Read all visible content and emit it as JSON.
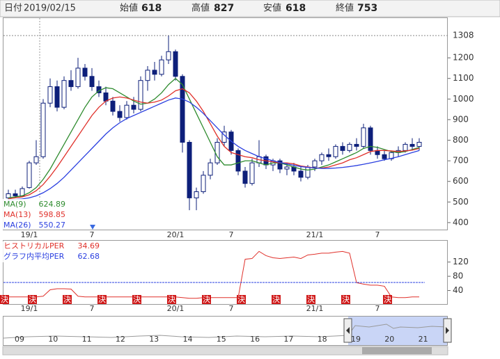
{
  "header": {
    "items": [
      {
        "label": "日付",
        "value": "2019/02/15",
        "color": "#333333",
        "bold": false
      },
      {
        "label": "始値",
        "value": 618,
        "color": "#222222",
        "bold": true
      },
      {
        "label": "高値",
        "value": 827,
        "color": "#e0201a",
        "bold": true
      },
      {
        "label": "安値",
        "value": 618,
        "color": "#1a8a1a",
        "bold": true
      },
      {
        "label": "終値",
        "value": 753,
        "color": "#222222",
        "bold": true
      }
    ]
  },
  "chart_data": [
    {
      "type": "candlestick",
      "categories": [
        null,
        null,
        null,
        "19/1",
        null,
        null,
        null,
        null,
        null,
        null,
        null,
        null,
        "7",
        null,
        null,
        null,
        null,
        null,
        null,
        null,
        null,
        null,
        null,
        null,
        "20/1",
        null,
        null,
        null,
        null,
        null,
        null,
        null,
        "7",
        null,
        null,
        null,
        null,
        null,
        null,
        null,
        null,
        null,
        null,
        null,
        "21/1",
        null,
        null,
        null,
        null,
        null,
        null,
        null,
        null,
        "7",
        null,
        null,
        null,
        null,
        null,
        null
      ],
      "open": [
        520,
        540,
        530,
        570,
        690,
        720,
        980,
        1060,
        960,
        1090,
        1060,
        1150,
        1110,
        1060,
        1030,
        990,
        940,
        910,
        970,
        950,
        1090,
        1140,
        1120,
        1190,
        1230,
        1110,
        790,
        520,
        550,
        630,
        690,
        790,
        840,
        750,
        650,
        590,
        690,
        720,
        680,
        700,
        660,
        670,
        650,
        620,
        670,
        700,
        730,
        720,
        770,
        750,
        780,
        770,
        860,
        750,
        730,
        710,
        740,
        750,
        780,
        770
      ],
      "high": [
        560,
        560,
        575,
        700,
        800,
        1000,
        1100,
        1090,
        1110,
        1140,
        1200,
        1170,
        1150,
        1090,
        1060,
        1010,
        970,
        990,
        1010,
        1110,
        1160,
        1180,
        1210,
        1308,
        1240,
        1120,
        800,
        570,
        650,
        710,
        810,
        870,
        850,
        760,
        670,
        710,
        800,
        730,
        710,
        710,
        690,
        690,
        670,
        680,
        710,
        740,
        760,
        780,
        790,
        790,
        810,
        880,
        870,
        770,
        750,
        750,
        770,
        790,
        810,
        810
      ],
      "low": [
        505,
        520,
        525,
        565,
        680,
        710,
        960,
        940,
        950,
        1040,
        1050,
        1090,
        1040,
        1010,
        970,
        920,
        890,
        900,
        930,
        940,
        1040,
        1090,
        1110,
        1170,
        1090,
        740,
        460,
        460,
        540,
        610,
        680,
        770,
        730,
        630,
        570,
        580,
        670,
        660,
        650,
        640,
        630,
        630,
        600,
        610,
        650,
        680,
        700,
        710,
        730,
        740,
        750,
        760,
        730,
        710,
        700,
        700,
        720,
        740,
        750,
        750
      ],
      "close": [
        540,
        530,
        565,
        690,
        720,
        980,
        1060,
        960,
        1090,
        1060,
        1150,
        1110,
        1060,
        1030,
        990,
        940,
        910,
        970,
        950,
        1090,
        1140,
        1120,
        1190,
        1230,
        1110,
        790,
        520,
        550,
        630,
        690,
        790,
        840,
        750,
        650,
        590,
        690,
        720,
        680,
        700,
        660,
        670,
        650,
        620,
        670,
        700,
        730,
        720,
        770,
        750,
        780,
        770,
        860,
        750,
        730,
        710,
        740,
        750,
        780,
        770,
        790
      ],
      "up_color": "#ffffff",
      "down_color": "#0d1f7a",
      "series": [
        {
          "name": "MA(9)",
          "color": "#2e8b2e",
          "legend_value": 624.89,
          "values": [
            520,
            525,
            530,
            545,
            570,
            610,
            660,
            720,
            780,
            840,
            900,
            960,
            1010,
            1040,
            1055,
            1050,
            1030,
            1010,
            990,
            975,
            980,
            1000,
            1030,
            1070,
            1100,
            1070,
            1000,
            930,
            860,
            790,
            720,
            680,
            680,
            690,
            700,
            700,
            690,
            680,
            690,
            690,
            680,
            670,
            660,
            655,
            660,
            670,
            680,
            695,
            710,
            725,
            740,
            760,
            770,
            765,
            755,
            745,
            740,
            745,
            755,
            765
          ]
        },
        {
          "name": "MA(13)",
          "color": "#e0302a",
          "legend_value": 598.85,
          "values": [
            515,
            520,
            525,
            535,
            555,
            585,
            625,
            670,
            720,
            770,
            820,
            870,
            920,
            960,
            990,
            1005,
            1010,
            1005,
            995,
            985,
            980,
            985,
            995,
            1015,
            1040,
            1050,
            1030,
            990,
            940,
            880,
            820,
            770,
            740,
            730,
            720,
            715,
            705,
            700,
            695,
            690,
            690,
            685,
            675,
            670,
            665,
            665,
            670,
            680,
            690,
            705,
            715,
            730,
            745,
            750,
            750,
            748,
            745,
            748,
            752,
            760
          ]
        },
        {
          "name": "MA(26)",
          "color": "#2a3fe0",
          "legend_value": 550.27,
          "values": [
            510,
            512,
            515,
            520,
            530,
            545,
            565,
            590,
            620,
            655,
            690,
            725,
            760,
            795,
            830,
            860,
            885,
            905,
            920,
            935,
            950,
            965,
            980,
            995,
            1005,
            1000,
            985,
            960,
            930,
            895,
            860,
            825,
            795,
            770,
            750,
            735,
            720,
            710,
            700,
            692,
            685,
            678,
            672,
            668,
            665,
            663,
            663,
            665,
            668,
            672,
            677,
            683,
            690,
            697,
            705,
            712,
            720,
            730,
            740,
            750
          ]
        }
      ],
      "ylim": [
        366,
        1393
      ],
      "yticks": [
        400,
        500,
        600,
        700,
        800,
        900,
        1000,
        1100,
        1200
      ],
      "high_marker": 1308
    },
    {
      "type": "line",
      "categories": [
        null,
        null,
        null,
        "19/1",
        null,
        null,
        null,
        null,
        null,
        null,
        null,
        null,
        "7",
        null,
        null,
        null,
        null,
        null,
        null,
        null,
        null,
        null,
        null,
        null,
        "20/1",
        null,
        null,
        null,
        null,
        null,
        null,
        null,
        "7",
        null,
        null,
        null,
        null,
        null,
        null,
        null,
        null,
        null,
        null,
        null,
        "21/1",
        null,
        null,
        null,
        null,
        null,
        null,
        null,
        null,
        "7",
        null,
        null,
        null,
        null,
        null,
        null
      ],
      "series": [
        {
          "name": "ヒストリカルPER",
          "color": "#e0302a",
          "legend_value": 34.69,
          "values": [
            22,
            22,
            22,
            22,
            22,
            24,
            42,
            45,
            45,
            44,
            24,
            22,
            22,
            22,
            22,
            22,
            22,
            22,
            22,
            22,
            22,
            22,
            22,
            22,
            22,
            20,
            18,
            18,
            20,
            20,
            20,
            20,
            20,
            20,
            128,
            130,
            150,
            138,
            132,
            130,
            132,
            134,
            130,
            140,
            142,
            145,
            145,
            148,
            150,
            145,
            62,
            58,
            55,
            55,
            52,
            22,
            20,
            20,
            22,
            22
          ]
        },
        {
          "name": "グラフ内平均PER",
          "color": "#2a3fe0",
          "legend_value": 62.68
        }
      ],
      "ylim": [
        0,
        180
      ],
      "yticks": [
        40,
        80,
        120
      ],
      "events": [
        {
          "x": 0,
          "label": "決"
        },
        {
          "x": 4,
          "label": "決"
        },
        {
          "x": 9,
          "label": "決"
        },
        {
          "x": 14,
          "label": "決"
        },
        {
          "x": 19,
          "label": "決"
        },
        {
          "x": 24,
          "label": "決"
        },
        {
          "x": 29,
          "label": "決"
        },
        {
          "x": 34,
          "label": "決"
        },
        {
          "x": 39,
          "label": "決"
        },
        {
          "x": 44,
          "label": "決"
        },
        {
          "x": 49,
          "label": "決"
        },
        {
          "x": 55,
          "label": "決"
        }
      ]
    }
  ],
  "navigator": {
    "labels": [
      "09",
      "10",
      "11",
      "12",
      "13",
      "14",
      "15",
      "16",
      "17",
      "18",
      "19",
      "20",
      "21"
    ]
  }
}
